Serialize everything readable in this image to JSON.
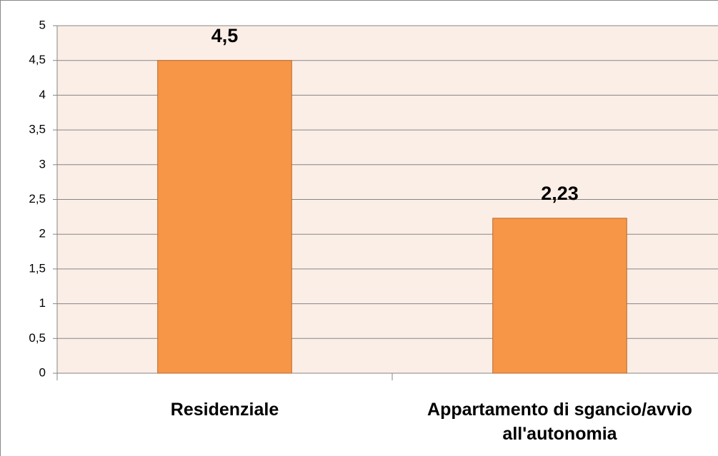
{
  "chart_data": {
    "type": "bar",
    "categories": [
      "Residenziale",
      "Appartamento di sgancio/avvio all'autonomia"
    ],
    "values": [
      4.5,
      2.23
    ],
    "value_labels": [
      "4,5",
      "2,23"
    ],
    "color": "#f79646",
    "ylim": [
      0,
      5
    ],
    "yticks": [
      0,
      {
        "value": 0.5,
        "label": "0,5"
      },
      1,
      {
        "value": 1.5,
        "label": "1,5"
      },
      2,
      {
        "value": 2.5,
        "label": "2,5"
      },
      3,
      {
        "value": 3.5,
        "label": "3,5"
      },
      4,
      {
        "value": 4.5,
        "label": "4,5"
      },
      5
    ],
    "grid": true
  }
}
